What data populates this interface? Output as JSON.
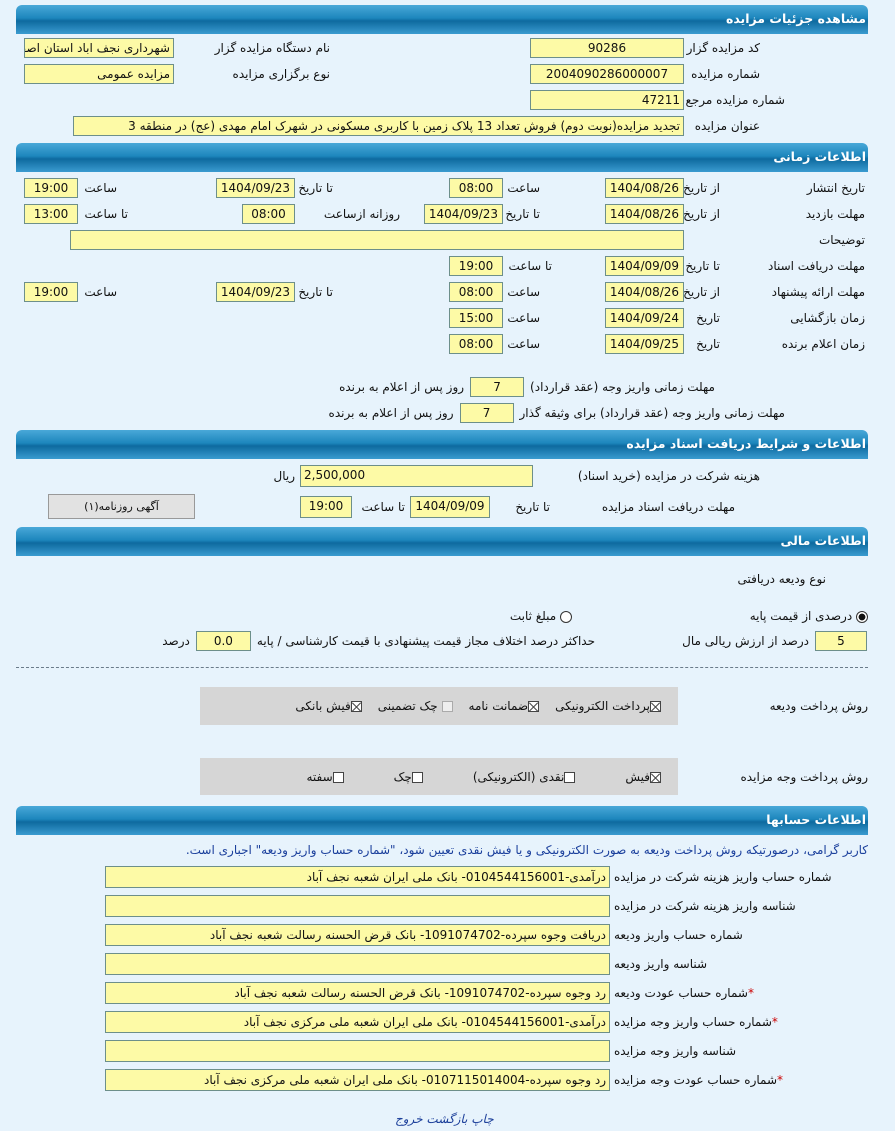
{
  "sections": {
    "details": "مشاهده جزئیات مزایده",
    "time": "اطلاعات زمانی",
    "docs": "اطلاعات و شرایط دریافت اسناد مزایده",
    "finance": "اطلاعات مالی",
    "accounts": "اطلاعات حسابها"
  },
  "details": {
    "organizer_code_label": "کد مزایده گزار",
    "organizer_code": "90286",
    "organizer_name_label": "نام دستگاه مزایده گزار",
    "organizer_name": "شهرداری نجف اباد استان اصفهان",
    "auction_number_label": "شماره مزایده",
    "auction_number": "2004090286000007",
    "auction_type_label": "نوع برگزاری مزایده",
    "auction_type": "مزایده عمومی",
    "reference_number_label": "شماره مزایده مرجع",
    "reference_number": "47211",
    "title_label": "عنوان مزایده",
    "title": "تجدید مزایده(نوبت دوم) فروش تعداد 13 پلاک زمین با کاربری مسکونی در شهرک امام مهدی (عج) در منطقه 3"
  },
  "time": {
    "from_date": "از تاریخ",
    "to_date": "تا تاریخ",
    "date": "تاریخ",
    "hour": "ساعت",
    "to_hour": "تا ساعت",
    "daily_from": "روزانه ازساعت",
    "publish": {
      "label": "تاریخ انتشار",
      "from_date": "1404/08/26",
      "from_time": "08:00",
      "to_date": "1404/09/23",
      "to_time": "19:00"
    },
    "visit": {
      "label": "مهلت بازدید",
      "from_date": "1404/08/26",
      "to_date": "1404/09/23",
      "daily_from": "08:00",
      "to_time": "13:00"
    },
    "description_label": "توضیحات",
    "description": "",
    "doc_receive": {
      "label": "مهلت دریافت اسناد",
      "to_date": "1404/09/09",
      "to_time": "19:00"
    },
    "offer": {
      "label": "مهلت ارائه پیشنهاد",
      "from_date": "1404/08/26",
      "from_time": "08:00",
      "to_date": "1404/09/23",
      "to_time": "19:00"
    },
    "opening": {
      "label": "زمان بازگشایی",
      "date": "1404/09/24",
      "time": "15:00"
    },
    "winner": {
      "label": "زمان اعلام برنده",
      "date": "1404/09/25",
      "time": "08:00"
    },
    "contract_label": "مهلت زمانی واریز وجه (عقد قرارداد)",
    "contract_days": "7",
    "contract_bail_label": "مهلت زمانی واریز وجه (عقد قرارداد) برای وثیقه گذار",
    "contract_bail_days": "7",
    "days_after": "روز پس از اعلام به برنده"
  },
  "docs": {
    "fee_label": "هزینه شرکت در مزایده (خرید اسناد)",
    "fee": "2,500,000",
    "currency": "ریال",
    "deadline_label": "مهلت دریافت اسناد مزایده",
    "to_date_label": "تا تاریخ",
    "to_date": "1404/09/09",
    "to_time_label": "تا ساعت",
    "to_time": "19:00",
    "newspaper_button": "آگهی روزنامه(۱)"
  },
  "finance": {
    "deposit_type_label": "نوع ودیعه دریافتی",
    "percent_option": "درصدی از قیمت پایه",
    "fixed_option": "مبلغ ثابت",
    "selected": "percent",
    "percent_value": "5",
    "percent_text": "درصد از ارزش ریالی مال",
    "max_diff_label": "حداکثر درصد اختلاف مجاز قیمت پیشنهادی با قیمت کارشناسی / پایه",
    "max_diff": "0.0",
    "percent_unit": "درصد",
    "deposit_method_label": "روش پرداخت ودیعه",
    "deposit_methods": [
      {
        "label": "پرداخت الکترونیکی",
        "checked": true
      },
      {
        "label": "ضمانت نامه",
        "checked": true
      },
      {
        "label": "چک تضمینی",
        "checked": false
      },
      {
        "label": "فیش بانکی",
        "checked": true
      }
    ],
    "payment_method_label": "روش پرداخت وجه مزایده",
    "payment_methods": [
      {
        "label": "فیش",
        "checked": true
      },
      {
        "label": "نقدی (الکترونیکی)",
        "checked": false
      },
      {
        "label": "چک",
        "checked": false
      },
      {
        "label": "سفته",
        "checked": false
      }
    ]
  },
  "accounts": {
    "notice": "کاربر گرامی، درصورتیکه روش پرداخت ودیعه به صورت الکترونیکی و یا فیش نقدی تعیین شود، \"شماره حساب واریز ودیعه\" اجباری است.",
    "rows": [
      {
        "label": "شماره حساب واریز هزینه شرکت در مزایده",
        "value": "درآمدی-0104544156001- بانک ملی ایران شعبه نجف آباد",
        "required": false
      },
      {
        "label": "شناسه واریز هزینه شرکت در مزایده",
        "value": "",
        "required": false
      },
      {
        "label": "شماره حساب واریز ودیعه",
        "value": "دریافت وجوه سپرده-1091074702- بانک قرض الحسنه رسالت شعبه نجف آباد",
        "required": false
      },
      {
        "label": "شناسه واریز ودیعه",
        "value": "",
        "required": false
      },
      {
        "label": "شماره حساب عودت ودیعه",
        "value": "رد وجوه سپرده-1091074702- بانک قرض الحسنه رسالت شعبه نجف آباد",
        "required": true
      },
      {
        "label": "شماره حساب واریز وجه مزایده",
        "value": "درآمدی-0104544156001- بانک ملی ایران شعبه ملی مرکزی نجف آباد",
        "required": true
      },
      {
        "label": "شناسه واریز وجه مزایده",
        "value": "",
        "required": false
      },
      {
        "label": "شماره حساب عودت وجه مزایده",
        "value": "رد وجوه سپرده-0107115014004- بانک ملی ایران شعبه ملی مرکزی نجف آباد",
        "required": true
      }
    ]
  },
  "footer": {
    "print": "چاپ",
    "back": "بازگشت",
    "exit": "خروج"
  }
}
